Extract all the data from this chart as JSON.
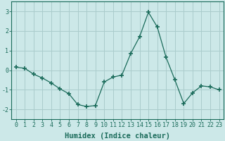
{
  "x": [
    0,
    1,
    2,
    3,
    4,
    5,
    6,
    7,
    8,
    9,
    10,
    11,
    12,
    13,
    14,
    15,
    16,
    17,
    18,
    19,
    20,
    21,
    22,
    23
  ],
  "y": [
    0.15,
    0.1,
    -0.2,
    -0.4,
    -0.65,
    -0.95,
    -1.2,
    -1.75,
    -1.85,
    -1.8,
    -0.6,
    -0.35,
    -0.25,
    0.85,
    1.7,
    2.95,
    2.2,
    0.65,
    -0.5,
    -1.7,
    -1.15,
    -0.8,
    -0.85,
    -1.0
  ],
  "line_color": "#1a6b5a",
  "marker": "+",
  "marker_size": 4,
  "marker_linewidth": 1.2,
  "bg_color": "#cce8e8",
  "grid_color": "#aacccc",
  "xlabel": "Humidex (Indice chaleur)",
  "ylim": [
    -2.5,
    3.5
  ],
  "xlim": [
    -0.5,
    23.5
  ],
  "yticks": [
    -2,
    -1,
    0,
    1,
    2,
    3
  ],
  "xticks": [
    0,
    1,
    2,
    3,
    4,
    5,
    6,
    7,
    8,
    9,
    10,
    11,
    12,
    13,
    14,
    15,
    16,
    17,
    18,
    19,
    20,
    21,
    22,
    23
  ],
  "tick_label_fontsize": 6,
  "xlabel_fontsize": 7.5
}
